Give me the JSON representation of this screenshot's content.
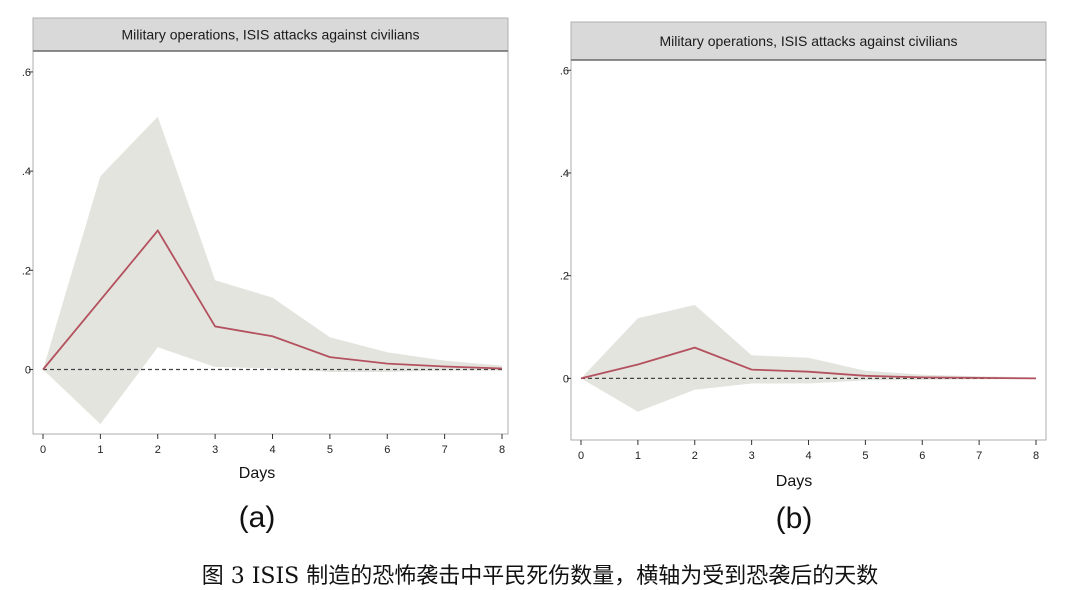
{
  "chart_data": [
    {
      "type": "area",
      "panel_label": "(a)",
      "title": "Military operations, ISIS attacks against civilians",
      "xlabel": "Days",
      "ylabel": "",
      "x": [
        0,
        1,
        2,
        3,
        4,
        5,
        6,
        7,
        8
      ],
      "xticks": [
        "0",
        "1",
        "2",
        "3",
        "4",
        "5",
        "6",
        "7",
        "8"
      ],
      "yticks": [
        ".6",
        ".4",
        ".2",
        "0"
      ],
      "ytick_values": [
        0.6,
        0.4,
        0.2,
        0
      ],
      "xlim": [
        0,
        8
      ],
      "ylim": [
        -0.13,
        0.62
      ],
      "series": [
        {
          "role": "estimate",
          "values": [
            0,
            0.14,
            0.28,
            0.087,
            0.067,
            0.025,
            0.012,
            0.006,
            0.002
          ]
        },
        {
          "role": "ci_upper",
          "values": [
            0,
            0.39,
            0.51,
            0.18,
            0.145,
            0.065,
            0.035,
            0.018,
            0.008
          ]
        },
        {
          "role": "ci_lower",
          "values": [
            0,
            -0.11,
            0.045,
            0.005,
            0.002,
            -0.005,
            -0.005,
            -0.002,
            -0.002
          ]
        }
      ],
      "reference_line": 0,
      "colors": {
        "line": "#b3525e",
        "band": "#e4e4df",
        "header": "#d9d9d9",
        "reference": "#444444"
      }
    },
    {
      "type": "area",
      "panel_label": "(b)",
      "title": "Military operations, ISIS attacks against civilians",
      "xlabel": "Days",
      "ylabel": "",
      "x": [
        0,
        1,
        2,
        3,
        4,
        5,
        6,
        7,
        8
      ],
      "xticks": [
        "0",
        "1",
        "2",
        "3",
        "4",
        "5",
        "6",
        "7",
        "8"
      ],
      "yticks": [
        ".6",
        ".4",
        ".2",
        "0"
      ],
      "ytick_values": [
        0.6,
        0.4,
        0.2,
        0
      ],
      "xlim": [
        0,
        8
      ],
      "ylim": [
        -0.12,
        0.62
      ],
      "series": [
        {
          "role": "estimate",
          "values": [
            0,
            0.027,
            0.06,
            0.017,
            0.013,
            0.005,
            0.002,
            0.001,
            0
          ]
        },
        {
          "role": "ci_upper",
          "values": [
            0,
            0.117,
            0.143,
            0.045,
            0.04,
            0.015,
            0.007,
            0.004,
            0.002
          ]
        },
        {
          "role": "ci_lower",
          "values": [
            0,
            -0.065,
            -0.022,
            -0.01,
            -0.01,
            -0.004,
            -0.003,
            -0.002,
            -0.001
          ]
        }
      ],
      "reference_line": 0,
      "colors": {
        "line": "#b3525e",
        "band": "#e4e4df",
        "header": "#d9d9d9",
        "reference": "#444444"
      }
    }
  ],
  "caption": "图 3 ISIS 制造的恐怖袭击中平民死伤数量，横轴为受到恐袭后的天数"
}
